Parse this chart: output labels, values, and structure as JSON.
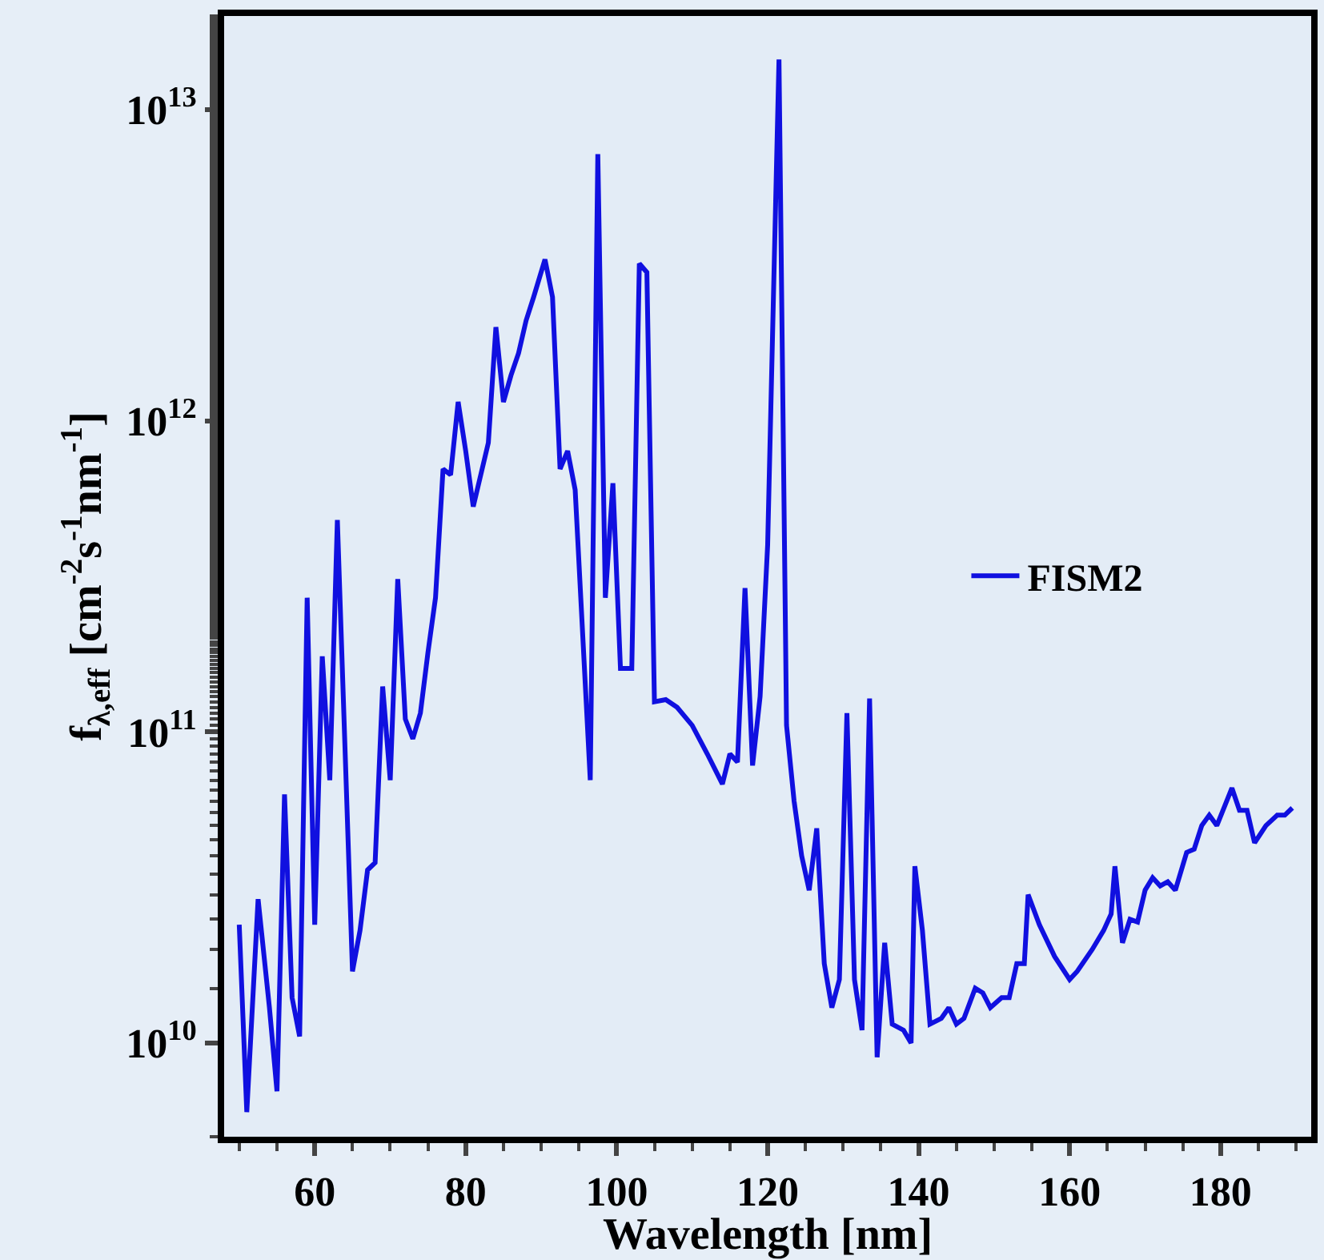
{
  "chart_data": {
    "type": "line",
    "xlabel": "Wavelength [nm]",
    "ylabel": "f$_{λ,eff}$ [cm$^{-2}$s$^{-1}$nm$^{-1}$]",
    "log": true,
    "xlim": [
      48,
      192
    ],
    "xticks": [
      60,
      80,
      100,
      120,
      140,
      160,
      180
    ],
    "ylim": [
      5000000000.0,
      20000000000000.0
    ],
    "yticks": [
      {
        "value": 10000000000.0,
        "label": "10$^{10}$"
      },
      {
        "value": 100000000000.0,
        "label": "10$^{11}$"
      },
      {
        "value": 1000000000000.0,
        "label": "10$^{12}$"
      },
      {
        "value": 10000000000000.0,
        "label": "10$^{13}$"
      }
    ],
    "legend": "right",
    "grid": false,
    "marker": "none",
    "line_style": "solid",
    "x": [
      50,
      51,
      52.5,
      54,
      55,
      56,
      57,
      58,
      59,
      60,
      61,
      62,
      63,
      65,
      66,
      67,
      68,
      69,
      70,
      71,
      72,
      73,
      74,
      75,
      76,
      77,
      78,
      79,
      80,
      81,
      83,
      84,
      85,
      86,
      87,
      88,
      89,
      90.5,
      91.5,
      92.5,
      93.5,
      94.5,
      96.5,
      97.5,
      98.5,
      99.5,
      100.5,
      102,
      103,
      104,
      105,
      106.5,
      108,
      110,
      112,
      114,
      115,
      116,
      117,
      118,
      119,
      120,
      121.5,
      122.5,
      123.5,
      124.5,
      125.5,
      126.5,
      127.5,
      128.5,
      129.5,
      130.5,
      131.5,
      132.5,
      133.5,
      134.5,
      135.5,
      136.5,
      138,
      139,
      139.5,
      140.5,
      141.5,
      143,
      144,
      145,
      146,
      147.5,
      148.5,
      149.5,
      151,
      152,
      153,
      154,
      154.5,
      156,
      158,
      160,
      161,
      163,
      164.5,
      165.5,
      166,
      167,
      168,
      169,
      170,
      171,
      172,
      173,
      174,
      175.5,
      176.5,
      177.5,
      178.5,
      179.5,
      181.5,
      182.5,
      183.5,
      184.5,
      186,
      187.5,
      188.5,
      189.5
    ],
    "series": [
      {
        "name": "FISM2",
        "color": "#1010e0",
        "values": [
          24000000000.0,
          6000000000.0,
          29000000000.0,
          13000000000.0,
          7000000000.0,
          63000000000.0,
          14000000000.0,
          10500000000.0,
          270000000000.0,
          24000000000.0,
          175000000000.0,
          70000000000.0,
          480000000000.0,
          17000000000.0,
          23000000000.0,
          36000000000.0,
          38000000000.0,
          140000000000.0,
          70000000000.0,
          310000000000.0,
          110000000000.0,
          95000000000.0,
          115000000000.0,
          180000000000.0,
          270000000000.0,
          700000000000.0,
          670000000000.0,
          1150000000000.0,
          800000000000.0,
          530000000000.0,
          850000000000.0,
          2000000000000.0,
          1150000000000.0,
          1400000000000.0,
          1650000000000.0,
          2100000000000.0,
          2500000000000.0,
          3300000000000.0,
          2500000000000.0,
          700000000000.0,
          800000000000.0,
          600000000000.0,
          70000000000.0,
          7200000000000.0,
          270000000000.0,
          630000000000.0,
          160000000000.0,
          160000000000.0,
          3200000000000.0,
          3000000000000.0,
          125000000000.0,
          127000000000.0,
          120000000000.0,
          105000000000.0,
          85000000000.0,
          68000000000.0,
          85000000000.0,
          80000000000.0,
          290000000000.0,
          78000000000.0,
          130000000000.0,
          400000000000.0,
          14500000000000.0,
          105000000000.0,
          60000000000.0,
          40000000000.0,
          31000000000.0,
          49000000000.0,
          18000000000.0,
          13000000000.0,
          16000000000.0,
          115000000000.0,
          16000000000.0,
          11000000000.0,
          128000000000.0,
          9000000000.0,
          21000000000.0,
          11500000000.0,
          11000000000.0,
          10000000000.0,
          37000000000.0,
          23000000000.0,
          11500000000.0,
          12000000000.0,
          13000000000.0,
          11500000000.0,
          12000000000.0,
          15000000000.0,
          14500000000.0,
          13000000000.0,
          14000000000.0,
          14000000000.0,
          18000000000.0,
          18000000000.0,
          30000000000.0,
          24000000000.0,
          19000000000.0,
          16000000000.0,
          17000000000.0,
          20000000000.0,
          23000000000.0,
          26000000000.0,
          37000000000.0,
          21000000000.0,
          25000000000.0,
          24500000000.0,
          31000000000.0,
          34000000000.0,
          32000000000.0,
          33000000000.0,
          31000000000.0,
          41000000000.0,
          42000000000.0,
          50000000000.0,
          54000000000.0,
          50000000000.0,
          66000000000.0,
          56000000000.0,
          56000000000.0,
          44000000000.0,
          50000000000.0,
          54000000000.0,
          54000000000.0,
          57000000000.0
        ]
      }
    ]
  }
}
